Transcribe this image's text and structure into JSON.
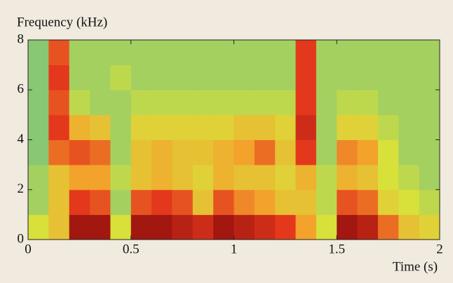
{
  "chart_data": {
    "type": "spectrogram",
    "ylabel": "Frequency (kHz)",
    "xlabel": "Time (s)",
    "xlim": [
      0,
      2
    ],
    "ylim": [
      0,
      8
    ],
    "xticks": [
      0,
      0.5,
      1,
      1.5,
      2
    ],
    "yticks": [
      0,
      2,
      4,
      6,
      8
    ],
    "colormap": [
      "#2aa3b6",
      "#6fbf86",
      "#d8e03a",
      "#f3a22c",
      "#e3381c",
      "#8c0c0c"
    ],
    "z": [
      [
        0.4,
        0.3,
        0.3,
        0.25,
        0.25,
        0.25,
        0.25,
        0.25
      ],
      [
        0.5,
        0.5,
        0.5,
        0.7,
        0.8,
        0.75,
        0.8,
        0.75
      ],
      [
        0.95,
        0.8,
        0.6,
        0.75,
        0.55,
        0.35,
        0.3,
        0.3
      ],
      [
        0.95,
        0.75,
        0.6,
        0.7,
        0.5,
        0.3,
        0.3,
        0.3
      ],
      [
        0.4,
        0.3,
        0.35,
        0.3,
        0.3,
        0.3,
        0.35,
        0.3
      ],
      [
        0.95,
        0.75,
        0.5,
        0.5,
        0.45,
        0.35,
        0.3,
        0.3
      ],
      [
        0.95,
        0.8,
        0.55,
        0.55,
        0.45,
        0.35,
        0.3,
        0.3
      ],
      [
        0.9,
        0.75,
        0.5,
        0.5,
        0.45,
        0.35,
        0.3,
        0.3
      ],
      [
        0.85,
        0.5,
        0.45,
        0.5,
        0.45,
        0.35,
        0.3,
        0.3
      ],
      [
        0.95,
        0.75,
        0.55,
        0.55,
        0.45,
        0.35,
        0.3,
        0.3
      ],
      [
        0.9,
        0.65,
        0.5,
        0.6,
        0.5,
        0.35,
        0.3,
        0.3
      ],
      [
        0.85,
        0.6,
        0.5,
        0.7,
        0.5,
        0.35,
        0.3,
        0.3
      ],
      [
        0.8,
        0.5,
        0.45,
        0.5,
        0.45,
        0.35,
        0.3,
        0.3
      ],
      [
        0.6,
        0.5,
        0.55,
        0.8,
        0.85,
        0.8,
        0.8,
        0.8
      ],
      [
        0.4,
        0.35,
        0.35,
        0.3,
        0.3,
        0.3,
        0.3,
        0.3
      ],
      [
        0.95,
        0.75,
        0.55,
        0.65,
        0.45,
        0.35,
        0.3,
        0.3
      ],
      [
        0.9,
        0.7,
        0.5,
        0.6,
        0.45,
        0.35,
        0.3,
        0.3
      ],
      [
        0.7,
        0.45,
        0.4,
        0.4,
        0.35,
        0.3,
        0.3,
        0.3
      ],
      [
        0.5,
        0.4,
        0.35,
        0.3,
        0.3,
        0.3,
        0.3,
        0.3
      ],
      [
        0.45,
        0.35,
        0.3,
        0.3,
        0.3,
        0.3,
        0.3,
        0.3
      ]
    ]
  }
}
